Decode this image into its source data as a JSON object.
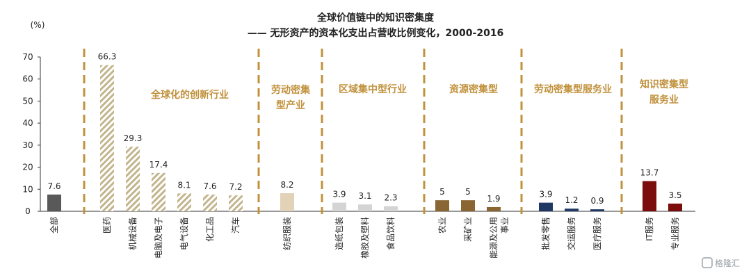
{
  "chart_data": {
    "type": "bar",
    "title": "全球价值链中的知识密集度",
    "subtitle": "—— 无形资产的资本化支出占营收比例变化，2000-2016",
    "ylabel": "(%)",
    "ylim": [
      0,
      70
    ],
    "yticks": [
      0,
      10,
      20,
      30,
      40,
      50,
      60,
      70
    ],
    "categories": [
      "全部",
      "医药",
      "机械设备",
      "电脑及电子",
      "电气设备",
      "化工品",
      "汽车",
      "纺织服装",
      "造纸包装",
      "橡胶及塑料",
      "食品饮料",
      "农业",
      "采矿业",
      "能源及公用事业",
      "批发零售",
      "交运服务",
      "医疗服务",
      "IT服务",
      "专业服务"
    ],
    "values": [
      7.6,
      66.3,
      29.3,
      17.4,
      8.1,
      7.6,
      7.2,
      8.2,
      3.9,
      3.1,
      2.3,
      5,
      5,
      1.9,
      3.9,
      1.2,
      0.9,
      13.7,
      3.5
    ],
    "value_labels": [
      "7.6",
      "66.3",
      "29.3",
      "17.4",
      "8.1",
      "7.6",
      "7.2",
      "8.2",
      "3.9",
      "3.1",
      "2.3",
      "5",
      "5",
      "1.9",
      "3.9",
      "1.2",
      "0.9",
      "13.7",
      "3.5"
    ],
    "groups": [
      {
        "label": "全球化的创新行业",
        "lines": [
          "全球化的创新行业"
        ],
        "members": [
          1,
          2,
          3,
          4,
          5,
          6
        ],
        "style": "hatch"
      },
      {
        "label": "劳动密集型产业",
        "lines": [
          "劳动密集",
          "型产业"
        ],
        "members": [
          7
        ],
        "color": "#e2d2b8"
      },
      {
        "label": "区域集中型行业",
        "lines": [
          "区域集中型行业"
        ],
        "members": [
          8,
          9,
          10
        ],
        "color": "#d4d4d4"
      },
      {
        "label": "资源密集型",
        "lines": [
          "资源密集型"
        ],
        "members": [
          11,
          12,
          13
        ],
        "color": "#8a6633"
      },
      {
        "label": "劳动密集型服务业",
        "lines": [
          "劳动密集型服务业"
        ],
        "members": [
          14,
          15,
          16
        ],
        "color": "#1f3864"
      },
      {
        "label": "知识密集型服务业",
        "lines": [
          "知识密集型",
          "服务业"
        ],
        "members": [
          17,
          18
        ],
        "color": "#7b0d0d"
      }
    ],
    "total_color": "#595959",
    "hatch_colors": [
      "#c2b48c",
      "#ffffff"
    ],
    "divider_color": "#c1913c",
    "grid": false
  },
  "watermark": "格隆汇"
}
